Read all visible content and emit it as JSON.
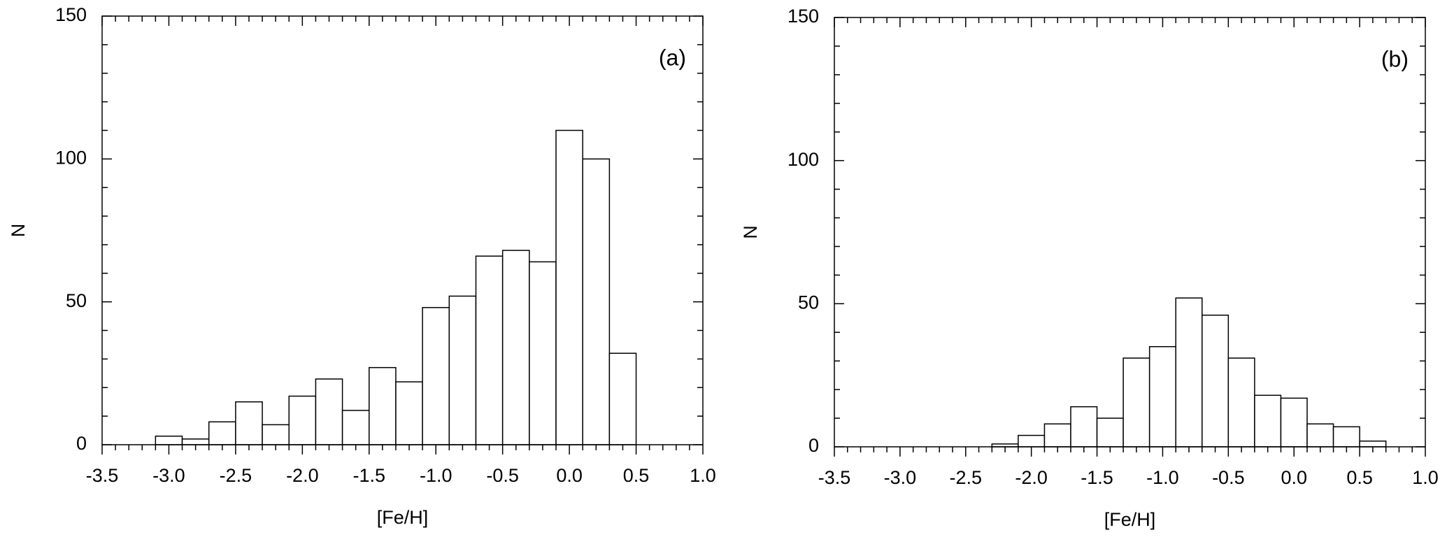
{
  "chart_data": [
    {
      "type": "histogram",
      "annotation": "(a)",
      "xlabel": "[Fe/H]",
      "ylabel": "N",
      "bins": [
        -3.1,
        -2.9,
        -2.7,
        -2.5,
        -2.3,
        -2.1,
        -1.9,
        -1.7,
        -1.5,
        -1.3,
        -1.1,
        -0.9,
        -0.7,
        -0.5,
        -0.3,
        -0.1,
        0.1,
        0.3,
        0.5
      ],
      "values": [
        3,
        2,
        8,
        15,
        7,
        17,
        23,
        12,
        27,
        22,
        48,
        52,
        66,
        68,
        64,
        110,
        100,
        32
      ],
      "color": "#ffffff",
      "xlim": [
        -3.5,
        1.0
      ],
      "xticks": [
        {
          "value": -3.5,
          "label": "-3.5"
        },
        {
          "value": -3.0,
          "label": "-3.0"
        },
        -2.5,
        {
          "value": -2.0,
          "label": "-2.0"
        },
        -1.5,
        {
          "value": -1.0,
          "label": "-1.0"
        },
        -0.5,
        {
          "value": 0.0,
          "label": "0.0"
        },
        0.5,
        {
          "value": 1.0,
          "label": "1.0"
        }
      ],
      "ylim": [
        0,
        150
      ],
      "yticks": [
        0,
        50,
        100,
        150
      ]
    },
    {
      "type": "histogram",
      "annotation": "(b)",
      "xlabel": "[Fe/H]",
      "ylabel": "N",
      "bins": [
        -2.3,
        -2.1,
        -1.9,
        -1.7,
        -1.5,
        -1.3,
        -1.1,
        -0.9,
        -0.7,
        -0.5,
        -0.3,
        -0.1,
        0.1,
        0.3,
        0.5,
        0.7
      ],
      "values": [
        1,
        4,
        8,
        14,
        10,
        31,
        35,
        52,
        46,
        31,
        18,
        17,
        8,
        7,
        2
      ],
      "color": "#ffffff",
      "xlim": [
        -3.5,
        1.0
      ],
      "xticks": [
        {
          "value": -3.5,
          "label": "-3.5"
        },
        {
          "value": -3.0,
          "label": "-3.0"
        },
        -2.5,
        {
          "value": -2.0,
          "label": "-2.0"
        },
        -1.5,
        {
          "value": -1.0,
          "label": "-1.0"
        },
        -0.5,
        {
          "value": 0.0,
          "label": "0.0"
        },
        0.5,
        {
          "value": 1.0,
          "label": "1.0"
        }
      ],
      "ylim": [
        0,
        150
      ],
      "yticks": [
        0,
        50,
        100,
        150
      ]
    }
  ]
}
